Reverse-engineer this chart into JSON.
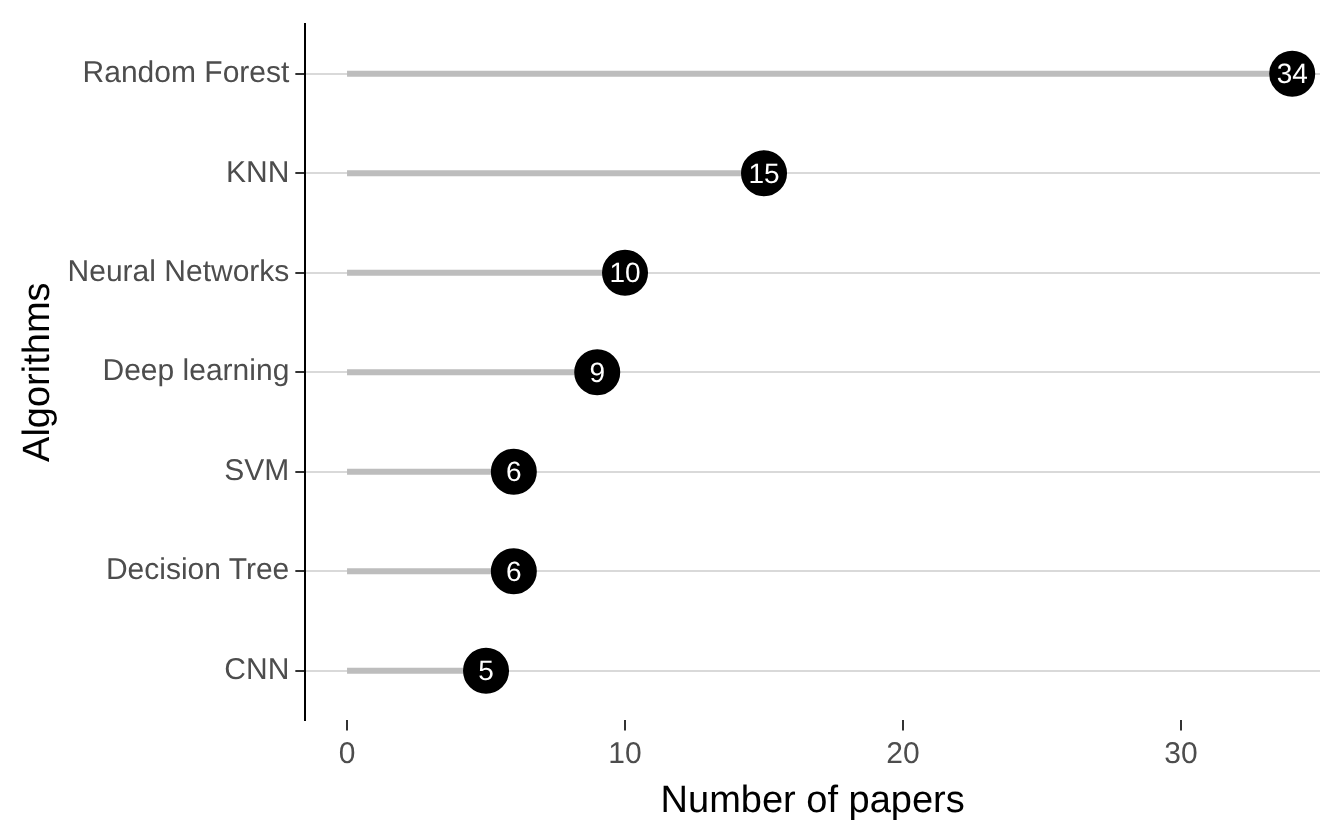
{
  "chart_data": {
    "type": "lollipop",
    "orientation": "horizontal",
    "xlabel": "Number of papers",
    "ylabel": "Algorithms",
    "categories": [
      "Random Forest",
      "KNN",
      "Neural Networks",
      "Deep learning",
      "SVM",
      "Decision Tree",
      "CNN"
    ],
    "values": [
      34,
      15,
      10,
      9,
      6,
      6,
      5
    ],
    "color": "#000000",
    "data_labels": true,
    "grid": "y",
    "xlim": [
      -1.5,
      35
    ],
    "xticks": [
      0,
      10,
      20,
      30
    ]
  }
}
